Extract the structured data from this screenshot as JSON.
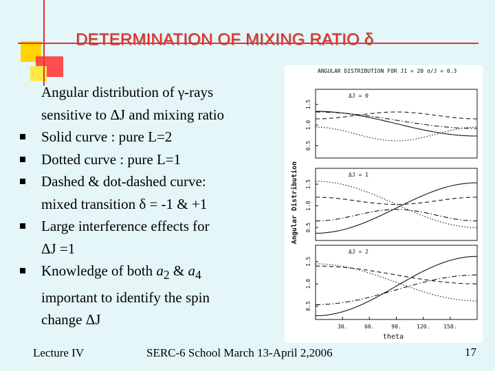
{
  "title": "DETERMINATION OF MIXING RATIO δ",
  "lines": [
    {
      "text": "Angular distribution of γ-rays",
      "bullet": false
    },
    {
      "text": "sensitive to ΔJ and mixing ratio",
      "bullet": false
    },
    {
      "text": "Solid curve : pure L=2",
      "bullet": true
    },
    {
      "text": "Dotted curve : pure L=1",
      "bullet": true
    },
    {
      "text": "Dashed & dot-dashed curve:",
      "bullet": true
    },
    {
      "text": "mixed transition δ = -1 & +1",
      "bullet": false
    },
    {
      "text": "Large interference effects for",
      "bullet": true
    },
    {
      "text": "ΔJ =1",
      "bullet": false
    },
    {
      "text_html": "Knowledge of both a<sub>2</sub> &amp; a<sub>4</sub>",
      "text": "Knowledge of both a2 & a4",
      "bullet": true
    },
    {
      "text": "important to identify the spin",
      "bullet": false
    },
    {
      "text": "change ΔJ",
      "bullet": false
    }
  ],
  "footer": {
    "left": "Lecture IV",
    "center": "SERC-6 School March 13-April 2,2006",
    "page": "17"
  },
  "figure": {
    "title": "ANGULAR DISTRIBUTION FOR J1 = 20   σ/J = 0.3",
    "ylabel": "Angular Distribution",
    "xlabel": "theta",
    "x_ticks": [
      "30.",
      "60.",
      "90.",
      "120.",
      "150."
    ],
    "panels": [
      {
        "label": "ΔJ = 0",
        "y_ticks": [
          "0.5",
          "1.0",
          "1.5"
        ]
      },
      {
        "label": "ΔJ = 1",
        "y_ticks": [
          "0.5",
          "1.0",
          "1.5"
        ]
      },
      {
        "label": "ΔJ = 2",
        "y_ticks": [
          "0.5",
          "1.0",
          "1.5"
        ]
      }
    ]
  }
}
